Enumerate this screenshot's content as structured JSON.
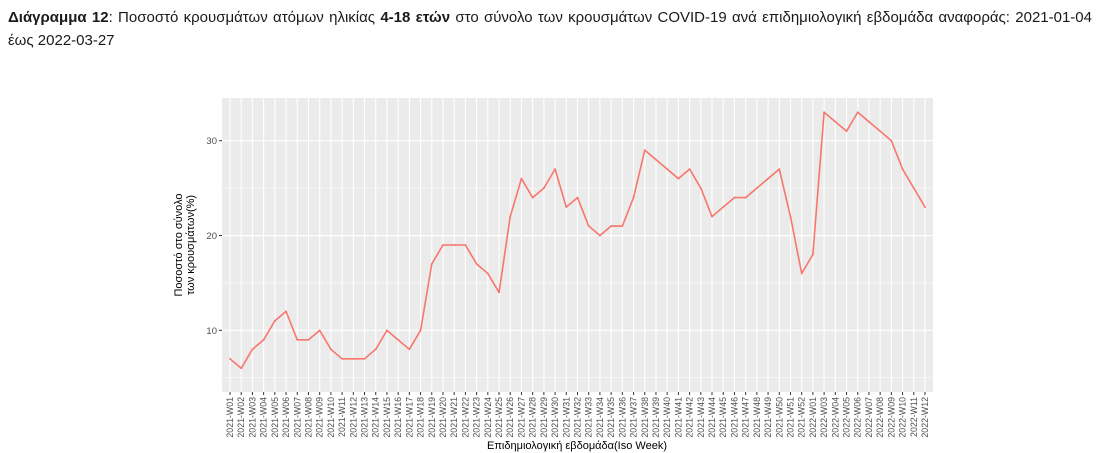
{
  "caption": {
    "label": "Διάγραμμα 12",
    "sep": ":  ",
    "text1": "Ποσοστό κρουσμάτων ατόμων ηλικίας ",
    "age": "4-18 ετών",
    "text2": " στο σύνολο των κρουσμάτων COVID-19 ανά επιδημιολογική εβδομάδα αναφοράς: 2021-01-04 έως 2022-03-27"
  },
  "chart_data": {
    "type": "line",
    "xlabel": "Επιδημιολογική εβδομάδα(Iso Week)",
    "ylabel_line1": "Ποσοστό στο σύνολο",
    "ylabel_line2": "των κρουσμάτων(%)",
    "ylim": [
      3.5,
      34.5
    ],
    "yticks": [
      10,
      20,
      30
    ],
    "grid": true,
    "line_color": "#F8766D",
    "panel_color": "#EBEBEB",
    "categories": [
      "2021-W01",
      "2021-W02",
      "2021-W03",
      "2021-W04",
      "2021-W05",
      "2021-W06",
      "2021-W07",
      "2021-W08",
      "2021-W09",
      "2021-W10",
      "2021-W11",
      "2021-W12",
      "2021-W13",
      "2021-W14",
      "2021-W15",
      "2021-W16",
      "2021-W17",
      "2021-W18",
      "2021-W19",
      "2021-W20",
      "2021-W21",
      "2021-W22",
      "2021-W23",
      "2021-W24",
      "2021-W25",
      "2021-W26",
      "2021-W27",
      "2021-W28",
      "2021-W29",
      "2021-W30",
      "2021-W31",
      "2021-W32",
      "2021-W33",
      "2021-W34",
      "2021-W35",
      "2021-W36",
      "2021-W37",
      "2021-W38",
      "2021-W39",
      "2021-W40",
      "2021-W41",
      "2021-W42",
      "2021-W43",
      "2021-W44",
      "2021-W45",
      "2021-W46",
      "2021-W47",
      "2021-W48",
      "2021-W49",
      "2021-W50",
      "2021-W51",
      "2021-W52",
      "2022-W01",
      "2022-W03",
      "2022-W04",
      "2022-W05",
      "2022-W06",
      "2022-W07",
      "2022-W08",
      "2022-W09",
      "2022-W10",
      "2022-W11",
      "2022-W12"
    ],
    "tick_labels": [
      "2021-W01",
      "2021-W02",
      "2021-W03",
      "2021-W04",
      "2021-W05",
      "2021-W06",
      "2021-W07",
      "2021-W08",
      "2021-W09",
      "2021-W10",
      "2021-W11",
      "2021-W12",
      "2021-W13",
      "2021-W14",
      "2021-W15",
      "2021-W16",
      "2021-W17",
      "2021-W18",
      "2021-W19",
      "2021-W20",
      "2021-W21",
      "2021-W22",
      "2021-W23",
      "2021-W24",
      "2021-W25",
      "2021-W26",
      "2021-W27",
      "2021-W28",
      "2021-W29",
      "2021-W30",
      "2021-W31",
      "2021-W32",
      "2021-W33",
      "2021-W34",
      "2021-W35",
      "2021-W36",
      "2021-W37",
      "2021-W38",
      "2021-W39",
      "2021-W40",
      "2021-W41",
      "2021-W42",
      "2021-W43",
      "2021-W44",
      "2021-W45",
      "2021-W46",
      "2021-W47",
      "2021-W48",
      "2021-W49",
      "2021-W50",
      "2021-W51",
      "2021-W52",
      "2022-W01",
      "2022-W03",
      "2022-W04",
      "2022-W05",
      "2022-W06",
      "2022-W07",
      "2022-W08",
      "2022-W09",
      "2022-W10",
      "2022-W11",
      "2022-W12"
    ],
    "values": [
      7,
      6,
      8,
      9,
      11,
      12,
      9,
      9,
      10,
      8,
      7,
      7,
      7,
      8,
      10,
      9,
      8,
      10,
      17,
      19,
      19,
      19,
      17,
      16,
      14,
      22,
      26,
      24,
      25,
      27,
      23,
      24,
      21,
      20,
      21,
      21,
      24,
      29,
      28,
      27,
      26,
      27,
      25,
      22,
      23,
      24,
      24,
      25,
      26,
      27,
      22,
      16,
      18,
      33,
      32,
      31,
      33,
      32,
      31,
      30,
      27,
      25,
      23
    ]
  }
}
